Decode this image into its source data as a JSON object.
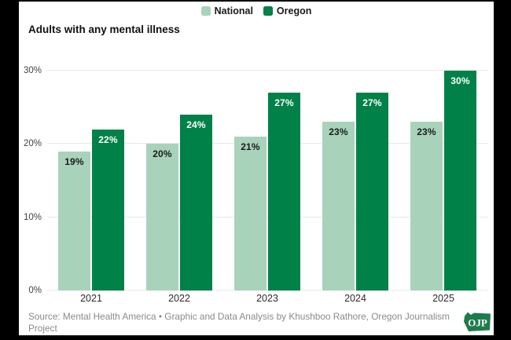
{
  "frame": {
    "background": "#000000",
    "card_background": "#ffffff"
  },
  "title": "Adults with any mental illness",
  "legend": {
    "items": [
      {
        "label": "National",
        "color": "#a8d3ba"
      },
      {
        "label": "Oregon",
        "color": "#008148"
      }
    ]
  },
  "chart_data": {
    "type": "bar",
    "title": "Adults with any mental illness",
    "categories": [
      "2021",
      "2022",
      "2023",
      "2024",
      "2025"
    ],
    "series": [
      {
        "name": "National",
        "color": "#a8d3ba",
        "label_color": "#1a1a1a",
        "values": [
          19,
          20,
          21,
          23,
          23
        ]
      },
      {
        "name": "Oregon",
        "color": "#008148",
        "label_color": "#ffffff",
        "values": [
          22,
          24,
          27,
          27,
          30
        ]
      }
    ],
    "value_suffix": "%",
    "ylim": [
      0,
      30
    ],
    "yticks": [
      0,
      10,
      20,
      30
    ],
    "ytick_labels": [
      "0%",
      "10%",
      "20%",
      "30%"
    ],
    "grid": true,
    "legend_position": "top-center",
    "gridline_color": "#e9e9e9"
  },
  "footer": {
    "source": "Source: Mental Health America • Graphic and Data Analysis by Khushboo Rathore, Oregon Journalism Project",
    "logo_text": "OJP",
    "logo_color": "#1e7b4b"
  }
}
